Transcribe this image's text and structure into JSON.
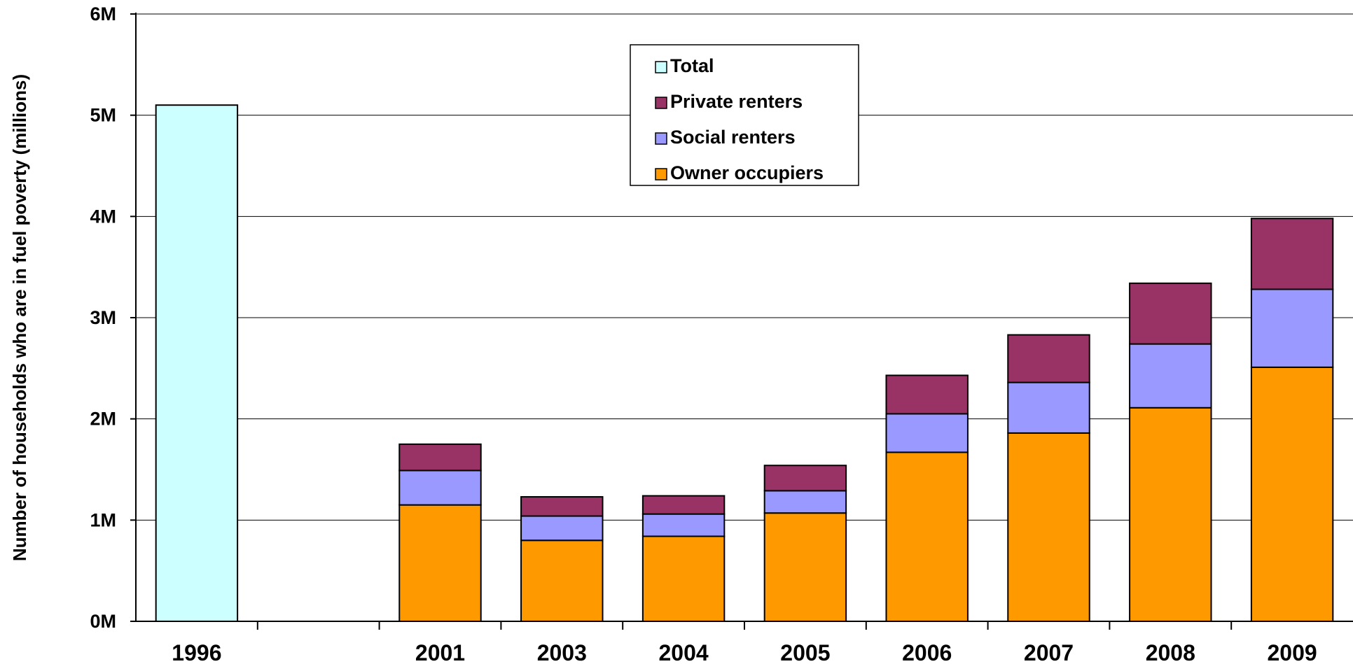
{
  "chart_data": {
    "type": "bar",
    "stacked": true,
    "title": "",
    "xlabel": "",
    "ylabel": "Number of households who are in fuel poverty (millions)",
    "ylim": [
      0,
      6
    ],
    "yticks": [
      {
        "value": 0,
        "label": "0M"
      },
      {
        "value": 1,
        "label": "1M"
      },
      {
        "value": 2,
        "label": "2M"
      },
      {
        "value": 3,
        "label": "3M"
      },
      {
        "value": 4,
        "label": "4M"
      },
      {
        "value": 5,
        "label": "5M"
      },
      {
        "value": 6,
        "label": "6M"
      }
    ],
    "grid": true,
    "legend_position": "top-center",
    "categories": [
      "1996",
      "",
      "2001",
      "2003",
      "2004",
      "2005",
      "2006",
      "2007",
      "2008",
      "2009"
    ],
    "series": [
      {
        "name": "Owner occupiers",
        "color": "#ff9900",
        "values": [
          null,
          null,
          1.15,
          0.8,
          0.84,
          1.07,
          1.67,
          1.86,
          2.11,
          2.51
        ]
      },
      {
        "name": "Social renters",
        "color": "#9999ff",
        "values": [
          null,
          null,
          0.34,
          0.24,
          0.22,
          0.22,
          0.38,
          0.5,
          0.63,
          0.77
        ]
      },
      {
        "name": "Private renters",
        "color": "#993366",
        "values": [
          null,
          null,
          0.26,
          0.19,
          0.18,
          0.25,
          0.38,
          0.47,
          0.6,
          0.7
        ]
      },
      {
        "name": "Total",
        "color": "#ccffff",
        "values": [
          5.1,
          null,
          null,
          null,
          null,
          null,
          null,
          null,
          null,
          null
        ]
      }
    ],
    "legend_order": [
      "Total",
      "Private renters",
      "Social renters",
      "Owner occupiers"
    ]
  }
}
